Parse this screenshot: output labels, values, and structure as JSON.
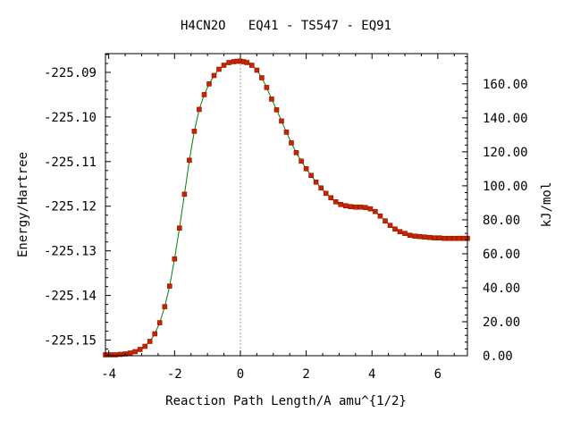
{
  "chart_data": {
    "type": "line",
    "title": "H4CN2O   EQ41 - TS547 - EQ91",
    "xlabel": "Reaction Path Length/A amu^{1/2}",
    "ylabel": "Energy/Hartree",
    "y2label": "kJ/mol",
    "xlim": [
      -4.1,
      6.9
    ],
    "ylim": [
      -225.1535,
      -225.0858
    ],
    "y2lim": [
      0,
      177.8
    ],
    "x_ticks": [
      -4,
      -2,
      0,
      2,
      4,
      6
    ],
    "x_tick_labels": [
      "-4",
      "-2",
      "0",
      "2",
      "4",
      "6"
    ],
    "y_ticks": [
      -225.15,
      -225.14,
      -225.13,
      -225.12,
      -225.11,
      -225.1,
      -225.09
    ],
    "y_tick_labels": [
      "-225.15",
      "-225.14",
      "-225.13",
      "-225.12",
      "-225.11",
      "-225.10",
      "-225.09"
    ],
    "y2_ticks": [
      0,
      20,
      40,
      60,
      80,
      100,
      120,
      140,
      160
    ],
    "y2_tick_labels": [
      "0.00",
      "20.00",
      "40.00",
      "60.00",
      "80.00",
      "100.00",
      "120.00",
      "140.00",
      "160.00"
    ],
    "ts_marker_x": 0,
    "grid": false,
    "legend": "none",
    "colors": {
      "line": "#008000",
      "marker": "#cc2200",
      "marker_edge": "#8b1a00",
      "ts_line": "#999999",
      "axes": "#000000"
    },
    "series": [
      {
        "x": [
          -4.1,
          -3.95,
          -3.8,
          -3.65,
          -3.5,
          -3.35,
          -3.2,
          -3.05,
          -2.9,
          -2.75,
          -2.6,
          -2.45,
          -2.3,
          -2.15,
          -2.0,
          -1.85,
          -1.7,
          -1.55,
          -1.4,
          -1.25,
          -1.1,
          -0.95,
          -0.8,
          -0.65,
          -0.5,
          -0.35,
          -0.2,
          -0.1,
          0.0,
          0.1,
          0.2,
          0.35,
          0.5,
          0.65,
          0.8,
          0.95,
          1.1,
          1.25,
          1.4,
          1.55,
          1.7,
          1.85,
          2.0,
          2.15,
          2.3,
          2.45,
          2.6,
          2.75,
          2.9,
          3.05,
          3.2,
          3.35,
          3.5,
          3.65,
          3.8,
          3.95,
          4.1,
          4.25,
          4.4,
          4.55,
          4.7,
          4.85,
          5.0,
          5.15,
          5.3,
          5.45,
          5.6,
          5.75,
          5.9,
          6.05,
          6.2,
          6.35,
          6.5,
          6.65,
          6.8,
          6.9
        ],
        "y": [
          -225.1533,
          -225.1533,
          -225.1533,
          -225.1532,
          -225.1531,
          -225.1529,
          -225.1526,
          -225.1521,
          -225.1514,
          -225.1503,
          -225.1486,
          -225.1461,
          -225.1425,
          -225.1379,
          -225.1318,
          -225.1249,
          -225.1173,
          -225.1097,
          -225.1032,
          -225.0983,
          -225.095,
          -225.0926,
          -225.0907,
          -225.0893,
          -225.0884,
          -225.0878,
          -225.0876,
          -225.0875,
          -225.0875,
          -225.0876,
          -225.0878,
          -225.0884,
          -225.0895,
          -225.0912,
          -225.0934,
          -225.096,
          -225.0984,
          -225.1009,
          -225.1034,
          -225.1058,
          -225.108,
          -225.1099,
          -225.1116,
          -225.1131,
          -225.1146,
          -225.1159,
          -225.1171,
          -225.1181,
          -225.119,
          -225.1196,
          -225.1199,
          -225.1201,
          -225.1202,
          -225.1202,
          -225.1203,
          -225.1206,
          -225.1212,
          -225.1222,
          -225.1233,
          -225.1243,
          -225.1251,
          -225.1257,
          -225.1261,
          -225.1265,
          -225.1267,
          -225.1268,
          -225.1269,
          -225.127,
          -225.1271,
          -225.1271,
          -225.1272,
          -225.1272,
          -225.1272,
          -225.1272,
          -225.1272,
          -225.1272
        ]
      }
    ]
  }
}
